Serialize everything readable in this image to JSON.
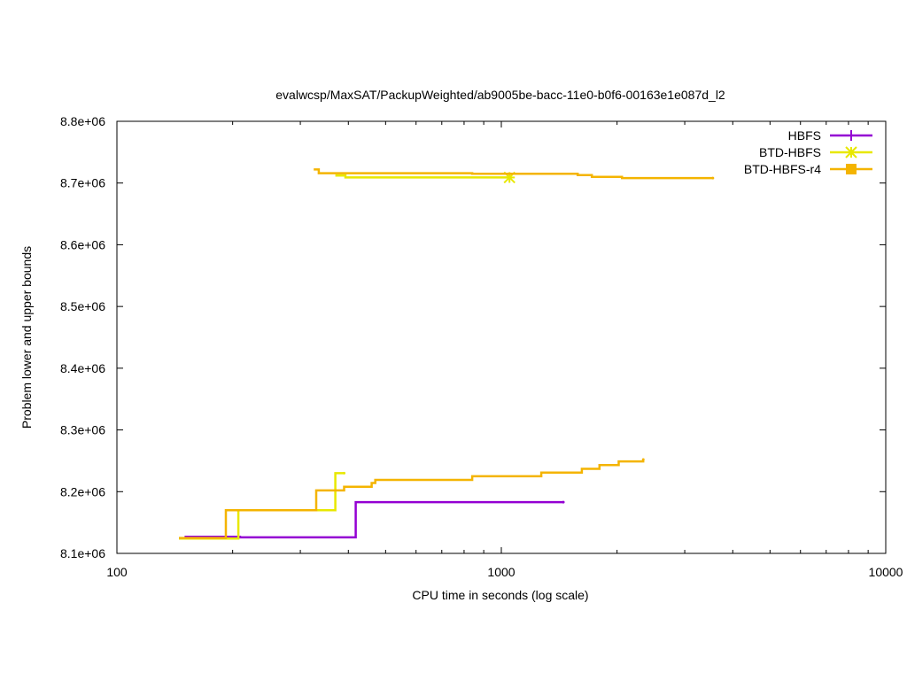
{
  "chart_data": {
    "type": "line",
    "title": "evalwcsp/MaxSAT/PackupWeighted/ab9005be-bacc-11e0-b0f6-00163e1e087d_l2",
    "xlabel": "CPU time in seconds (log scale)",
    "ylabel": "Problem lower and upper bounds",
    "x_scale": "log",
    "xlim": [
      100,
      10000
    ],
    "ylim": [
      8100000,
      8800000
    ],
    "x_ticks": [
      100,
      1000,
      10000
    ],
    "x_tick_labels": [
      "100",
      "1000",
      "10000"
    ],
    "y_ticks": [
      8100000,
      8200000,
      8300000,
      8400000,
      8500000,
      8600000,
      8700000,
      8800000
    ],
    "y_tick_labels": [
      "8.1e+06",
      "8.2e+06",
      "8.3e+06",
      "8.4e+06",
      "8.5e+06",
      "8.6e+06",
      "8.7e+06",
      "8.8e+06"
    ],
    "legend_position": "top-right",
    "grid": false,
    "series": [
      {
        "name": "HBFS",
        "color": "#9400d3",
        "marker": "plus",
        "steps": [
          {
            "role": "lower",
            "points": [
              [
                150,
                8127000
              ],
              [
                209,
                8127000
              ],
              [
                209,
                8126000
              ],
              [
                418,
                8126000
              ],
              [
                418,
                8183000
              ],
              [
                1450,
                8183000
              ]
            ]
          }
        ]
      },
      {
        "name": "BTD-HBFS",
        "color": "#e8e800",
        "marker": "star",
        "steps": [
          {
            "role": "lower",
            "points": [
              [
                145,
                8124000
              ],
              [
                207,
                8124000
              ],
              [
                207,
                8170000
              ],
              [
                370,
                8170000
              ],
              [
                370,
                8230000
              ],
              [
                390,
                8230000
              ]
            ]
          },
          {
            "role": "upper",
            "points": [
              [
                370,
                8712000
              ],
              [
                393,
                8712000
              ],
              [
                393,
                8709000
              ],
              [
                1050,
                8709000
              ]
            ]
          }
        ]
      },
      {
        "name": "BTD-HBFS-r4",
        "color": "#f4b400",
        "marker": "square",
        "steps": [
          {
            "role": "lower",
            "points": [
              [
                145,
                8125000
              ],
              [
                192,
                8125000
              ],
              [
                192,
                8170000
              ],
              [
                330,
                8170000
              ],
              [
                330,
                8202000
              ],
              [
                390,
                8202000
              ],
              [
                390,
                8208000
              ],
              [
                460,
                8208000
              ],
              [
                460,
                8214000
              ],
              [
                470,
                8214000
              ],
              [
                470,
                8219000
              ],
              [
                840,
                8219000
              ],
              [
                840,
                8225000
              ],
              [
                1270,
                8225000
              ],
              [
                1270,
                8231000
              ],
              [
                1620,
                8231000
              ],
              [
                1620,
                8237000
              ],
              [
                1800,
                8237000
              ],
              [
                1800,
                8243000
              ],
              [
                2020,
                8243000
              ],
              [
                2020,
                8249000
              ],
              [
                2340,
                8249000
              ],
              [
                2340,
                8252000
              ]
            ]
          },
          {
            "role": "upper",
            "points": [
              [
                325,
                8722000
              ],
              [
                335,
                8722000
              ],
              [
                335,
                8716000
              ],
              [
                840,
                8716000
              ],
              [
                840,
                8715000
              ],
              [
                1580,
                8715000
              ],
              [
                1580,
                8713000
              ],
              [
                1720,
                8713000
              ],
              [
                1720,
                8710000
              ],
              [
                2060,
                8710000
              ],
              [
                2060,
                8708000
              ],
              [
                3550,
                8708000
              ]
            ]
          }
        ]
      }
    ]
  }
}
